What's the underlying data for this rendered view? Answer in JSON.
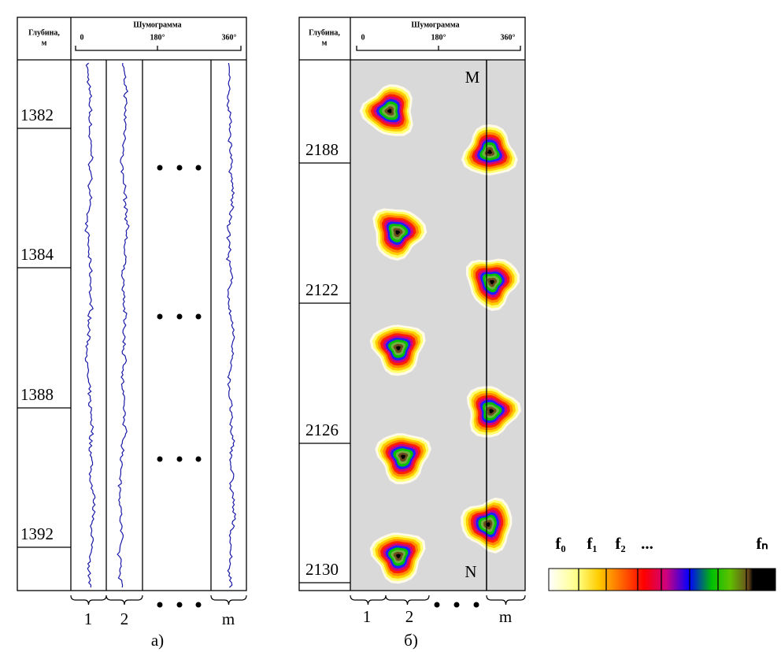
{
  "panel_a": {
    "header": {
      "depth": "Глубина,",
      "depth_unit": "м",
      "title": "Шумограмма",
      "scale": [
        "0",
        "180°",
        "360°"
      ]
    },
    "depths": [
      "1382",
      "1384",
      "1388",
      "1392"
    ],
    "tracks": [
      "1",
      "2",
      "m"
    ],
    "caption": "а)"
  },
  "panel_b": {
    "header": {
      "depth": "Глубина,",
      "depth_unit": "м",
      "title": "Шумограмма",
      "scale": [
        "0",
        "180°",
        "360°"
      ]
    },
    "depths": [
      "2188",
      "2122",
      "2126",
      "2130"
    ],
    "markers": [
      "M",
      "N"
    ],
    "tracks": [
      "1",
      "2",
      "m"
    ],
    "caption": "б)"
  },
  "legend": {
    "labels": [
      "f₀",
      "f₁",
      "f₂",
      "...",
      "fₙ"
    ]
  }
}
